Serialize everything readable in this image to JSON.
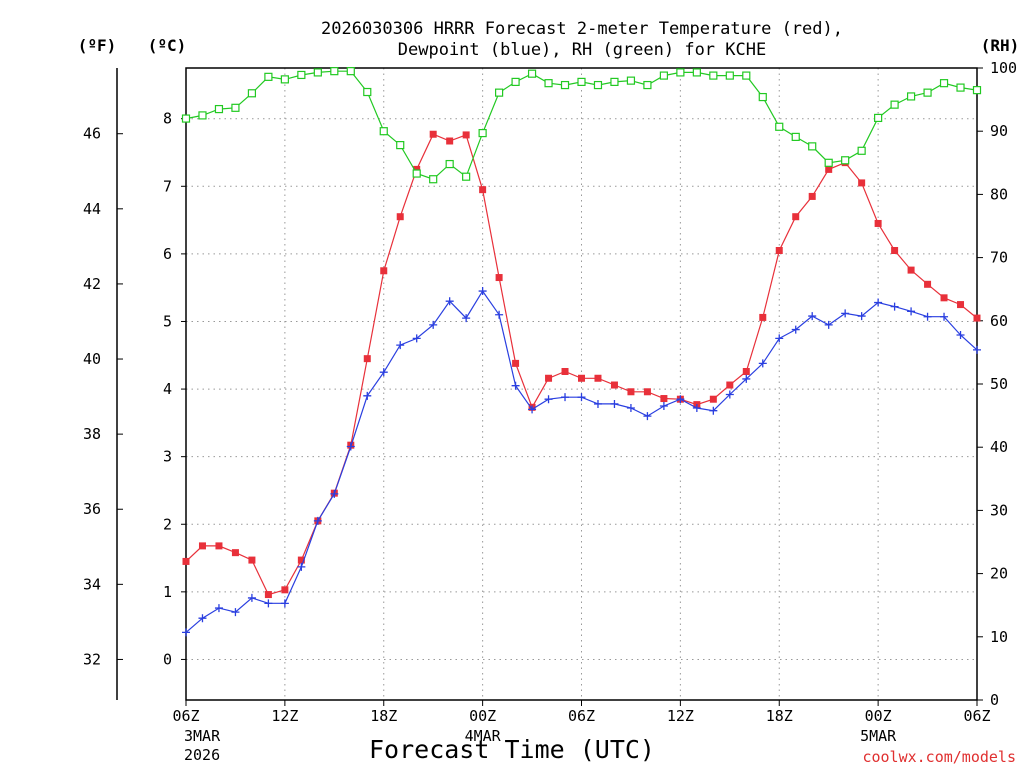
{
  "chart_data": {
    "type": "line",
    "title": "2026030306 HRRR Forecast 2-meter Temperature (red), Dewpoint (blue), RH (green) for KCHE",
    "title_lines": [
      "2026030306 HRRR Forecast 2-meter Temperature (red),",
      "Dewpoint (blue), RH (green) for KCHE"
    ],
    "xlabel": "Forecast Time (UTC)",
    "credit": "coolwx.com/models",
    "units": {
      "fahrenheit": "(ºF)",
      "celsius": "(ºC)",
      "rh": "(RH)"
    },
    "x_hours": {
      "min": 0,
      "max": 48
    },
    "x_ticks": [
      {
        "hour": 0,
        "label": "06Z",
        "date": "3MAR",
        "year": "2026"
      },
      {
        "hour": 6,
        "label": "12Z"
      },
      {
        "hour": 12,
        "label": "18Z"
      },
      {
        "hour": 18,
        "label": "00Z",
        "date": "4MAR"
      },
      {
        "hour": 24,
        "label": "06Z"
      },
      {
        "hour": 30,
        "label": "12Z"
      },
      {
        "hour": 36,
        "label": "18Z"
      },
      {
        "hour": 42,
        "label": "00Z",
        "date": "5MAR"
      },
      {
        "hour": 48,
        "label": "06Z"
      }
    ],
    "y_celsius": {
      "min": -0.6,
      "max": 8.75,
      "ticks": [
        "0",
        "1",
        "2",
        "3",
        "4",
        "5",
        "6",
        "7",
        "8"
      ]
    },
    "y_fahrenheit": {
      "ticks": [
        "32",
        "34",
        "36",
        "38",
        "40",
        "42",
        "44",
        "46"
      ]
    },
    "y_rh": {
      "min": 0,
      "max": 100,
      "ticks": [
        "0",
        "10",
        "20",
        "30",
        "40",
        "50",
        "60",
        "70",
        "80",
        "90",
        "100"
      ]
    },
    "grid": true,
    "colors": {
      "temperature": "#e8303a",
      "dewpoint": "#2a3fe0",
      "rh": "#22c922"
    },
    "series": [
      {
        "name": "Temperature (°C)",
        "key": "temperature",
        "marker": "filled-square",
        "values": [
          1.45,
          1.68,
          1.68,
          1.58,
          1.47,
          0.96,
          1.03,
          1.47,
          2.05,
          2.46,
          3.17,
          4.45,
          5.75,
          6.55,
          7.25,
          7.77,
          7.67,
          7.76,
          6.95,
          5.65,
          4.38,
          3.73,
          4.16,
          4.26,
          4.16,
          4.16,
          4.06,
          3.96,
          3.96,
          3.86,
          3.85,
          3.77,
          3.85,
          4.06,
          4.26,
          5.06,
          6.05,
          6.55,
          6.85,
          7.25,
          7.35,
          7.05,
          6.45,
          6.05,
          5.76,
          5.55,
          5.35,
          5.25,
          5.05
        ]
      },
      {
        "name": "Dewpoint (°C)",
        "key": "dewpoint",
        "marker": "plus",
        "values": [
          0.4,
          0.61,
          0.76,
          0.7,
          0.91,
          0.83,
          0.83,
          1.37,
          2.05,
          2.45,
          3.15,
          3.9,
          4.25,
          4.65,
          4.75,
          4.95,
          5.3,
          5.05,
          5.45,
          5.1,
          4.05,
          3.7,
          3.85,
          3.88,
          3.88,
          3.78,
          3.78,
          3.72,
          3.6,
          3.75,
          3.85,
          3.72,
          3.68,
          3.92,
          4.15,
          4.38,
          4.75,
          4.88,
          5.08,
          4.95,
          5.12,
          5.08,
          5.28,
          5.22,
          5.15,
          5.07,
          5.07,
          4.8,
          4.58
        ]
      },
      {
        "name": "RH (%)",
        "key": "rh",
        "marker": "open-square",
        "values": [
          92,
          92.5,
          93.5,
          93.7,
          96,
          98.6,
          98.2,
          98.9,
          99.3,
          99.5,
          99.5,
          96.2,
          90,
          87.8,
          83.3,
          82.4,
          84.8,
          82.8,
          89.7,
          96.1,
          97.8,
          99.1,
          97.6,
          97.3,
          97.8,
          97.3,
          97.8,
          98,
          97.3,
          98.8,
          99.3,
          99.3,
          98.8,
          98.8,
          98.8,
          95.4,
          90.7,
          89.1,
          87.6,
          85,
          85.4,
          86.9,
          92.1,
          94.2,
          95.5,
          96.1,
          97.6,
          96.9,
          96.5
        ]
      }
    ]
  }
}
